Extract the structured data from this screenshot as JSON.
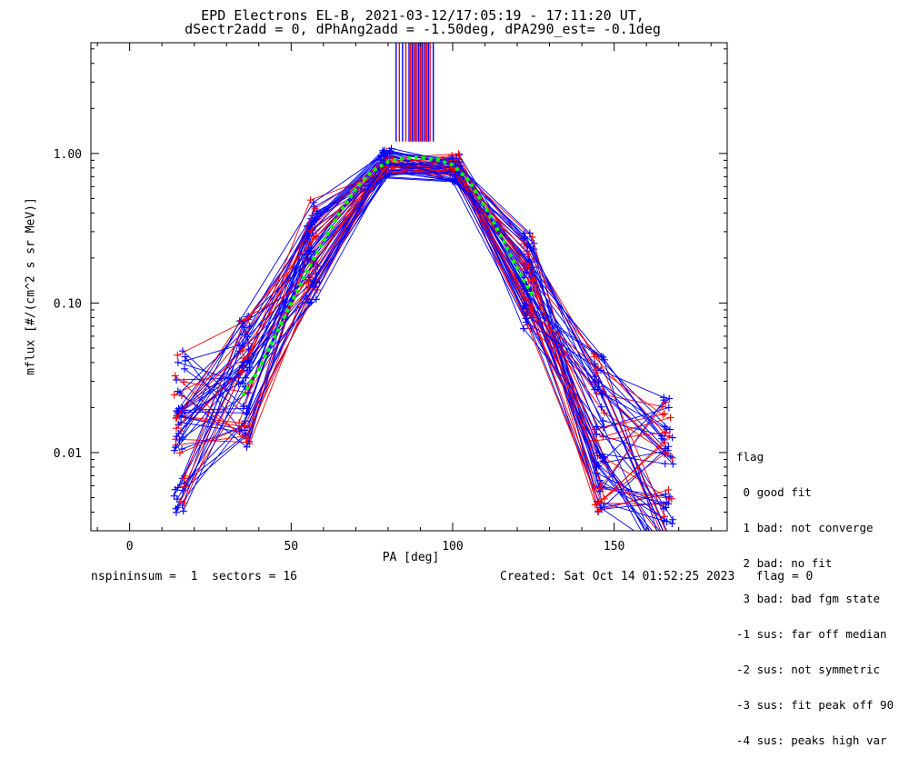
{
  "title_line1": "EPD Electrons EL-B, 2021-03-12/17:05:19 - 17:11:20 UT,",
  "title_line2": "dSectr2add = 0, dPhAng2add = -1.50deg, dPA290_est=  -0.1deg",
  "footer_left": "nspininsum =  1  sectors = 16",
  "footer_right": "Created: Sat Oct 14 01:52:25 2023   flag = 0",
  "legend": {
    "title": "flag",
    "items": [
      " 0 good fit",
      " 1 bad: not converge",
      " 2 bad: no fit",
      " 3 bad: bad fgm state",
      "-1 sus: far off median",
      "-2 sus: not symmetric",
      "-3 sus: fit peak off 90",
      "-4 sus: peaks high var"
    ]
  },
  "colors": {
    "blue": "#0000ff",
    "red": "#ff0000",
    "fit": "#00ff00",
    "axis": "#000000"
  },
  "chart_data": {
    "type": "line",
    "xlabel": "PA [deg]",
    "ylabel": "mflux [#/(cm^2 s sr MeV)]",
    "xlim": [
      -12,
      185
    ],
    "ylim": [
      0.003,
      5.5
    ],
    "yscale": "log",
    "xticks": [
      0,
      50,
      100,
      150
    ],
    "yticks": [
      0.01,
      0.1,
      1.0
    ],
    "ytick_labels": [
      "0.01",
      "0.10",
      "1.00"
    ],
    "pa_bins": [
      15.5,
      35.5,
      56.5,
      79.5,
      100.5,
      123.5,
      145.5,
      166.5
    ],
    "template_profile": [
      0.014,
      0.03,
      0.22,
      0.86,
      0.8,
      0.14,
      0.014,
      0.0055
    ],
    "n_curves": 60,
    "peak_vlines_x": [
      82.5,
      83.5,
      84.5,
      85.5,
      86.5,
      87.0,
      87.5,
      88.0,
      88.5,
      89.0,
      89.5,
      90.0,
      90.5,
      91.0,
      91.5,
      92.0,
      92.5,
      93.0,
      94.0
    ],
    "peak_vline_ymin": 1.2,
    "fit_curve": {
      "x": [
        35,
        40,
        45,
        50,
        55,
        60,
        65,
        70,
        75,
        80,
        85,
        90,
        95,
        100,
        105,
        110,
        115,
        120,
        125
      ],
      "y": [
        0.024,
        0.036,
        0.06,
        0.1,
        0.165,
        0.26,
        0.4,
        0.58,
        0.76,
        0.88,
        0.93,
        0.94,
        0.91,
        0.84,
        0.66,
        0.44,
        0.28,
        0.17,
        0.11
      ]
    }
  }
}
